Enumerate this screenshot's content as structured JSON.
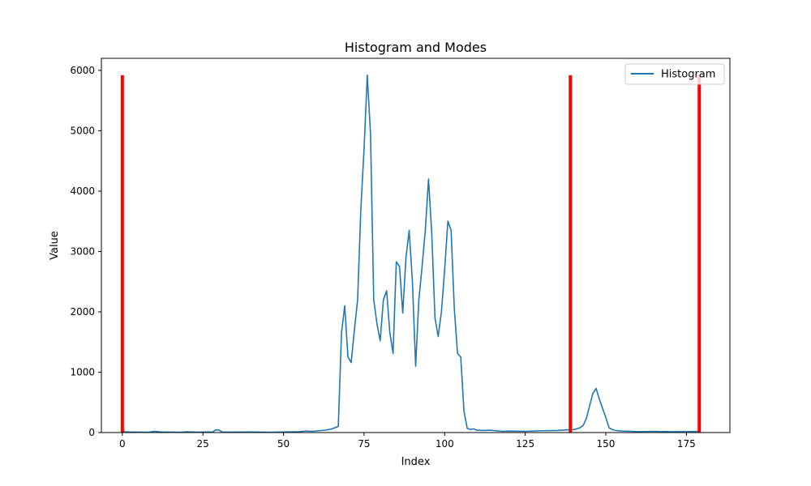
{
  "chart_data": {
    "type": "line",
    "title": "Histogram and Modes",
    "xlabel": "Index",
    "ylabel": "Value",
    "xlim": [
      -6.5,
      188.5
    ],
    "ylim": [
      0,
      6200
    ],
    "xticks": [
      0,
      25,
      50,
      75,
      100,
      125,
      150,
      175
    ],
    "yticks": [
      0,
      1000,
      2000,
      3000,
      4000,
      5000,
      6000
    ],
    "legend": {
      "position": "top-right",
      "entries": [
        "Histogram"
      ]
    },
    "series": [
      {
        "name": "Histogram",
        "color": "#1f77b4",
        "points": [
          [
            0,
            15
          ],
          [
            2,
            10
          ],
          [
            5,
            8
          ],
          [
            8,
            5
          ],
          [
            10,
            20
          ],
          [
            12,
            10
          ],
          [
            15,
            8
          ],
          [
            18,
            5
          ],
          [
            20,
            12
          ],
          [
            23,
            6
          ],
          [
            26,
            10
          ],
          [
            28,
            8
          ],
          [
            29,
            45
          ],
          [
            30,
            40
          ],
          [
            31,
            10
          ],
          [
            35,
            8
          ],
          [
            40,
            10
          ],
          [
            45,
            5
          ],
          [
            50,
            10
          ],
          [
            55,
            15
          ],
          [
            57,
            25
          ],
          [
            59,
            20
          ],
          [
            61,
            30
          ],
          [
            63,
            40
          ],
          [
            65,
            60
          ],
          [
            67,
            100
          ],
          [
            68,
            1650
          ],
          [
            69,
            2100
          ],
          [
            70,
            1250
          ],
          [
            71,
            1160
          ],
          [
            72,
            1700
          ],
          [
            73,
            2200
          ],
          [
            74,
            3700
          ],
          [
            75,
            4700
          ],
          [
            76,
            5920
          ],
          [
            77,
            4950
          ],
          [
            78,
            2200
          ],
          [
            79,
            1800
          ],
          [
            80,
            1520
          ],
          [
            81,
            2200
          ],
          [
            82,
            2350
          ],
          [
            83,
            1650
          ],
          [
            84,
            1310
          ],
          [
            85,
            2830
          ],
          [
            86,
            2750
          ],
          [
            87,
            1980
          ],
          [
            88,
            2900
          ],
          [
            89,
            3350
          ],
          [
            90,
            2500
          ],
          [
            91,
            1100
          ],
          [
            92,
            2200
          ],
          [
            93,
            2750
          ],
          [
            94,
            3350
          ],
          [
            95,
            4200
          ],
          [
            96,
            3300
          ],
          [
            97,
            1900
          ],
          [
            98,
            1590
          ],
          [
            99,
            2000
          ],
          [
            100,
            2700
          ],
          [
            101,
            3500
          ],
          [
            102,
            3350
          ],
          [
            103,
            2050
          ],
          [
            104,
            1310
          ],
          [
            105,
            1250
          ],
          [
            106,
            350
          ],
          [
            107,
            70
          ],
          [
            108,
            50
          ],
          [
            109,
            60
          ],
          [
            110,
            40
          ],
          [
            112,
            35
          ],
          [
            114,
            40
          ],
          [
            116,
            30
          ],
          [
            118,
            20
          ],
          [
            120,
            25
          ],
          [
            125,
            20
          ],
          [
            130,
            30
          ],
          [
            135,
            35
          ],
          [
            138,
            45
          ],
          [
            140,
            50
          ],
          [
            141,
            60
          ],
          [
            142,
            80
          ],
          [
            143,
            120
          ],
          [
            144,
            240
          ],
          [
            145,
            450
          ],
          [
            146,
            650
          ],
          [
            147,
            730
          ],
          [
            148,
            550
          ],
          [
            149,
            400
          ],
          [
            150,
            250
          ],
          [
            151,
            80
          ],
          [
            152,
            50
          ],
          [
            153,
            35
          ],
          [
            155,
            25
          ],
          [
            158,
            20
          ],
          [
            160,
            15
          ],
          [
            165,
            20
          ],
          [
            170,
            15
          ],
          [
            175,
            15
          ],
          [
            179,
            20
          ]
        ]
      }
    ],
    "vlines": [
      {
        "x": 0,
        "ymin": 0,
        "ymax": 5920,
        "color": "#ff0000"
      },
      {
        "x": 139,
        "ymin": 0,
        "ymax": 5920,
        "color": "#ff0000"
      },
      {
        "x": 179,
        "ymin": 0,
        "ymax": 5920,
        "color": "#ff0000"
      }
    ]
  }
}
